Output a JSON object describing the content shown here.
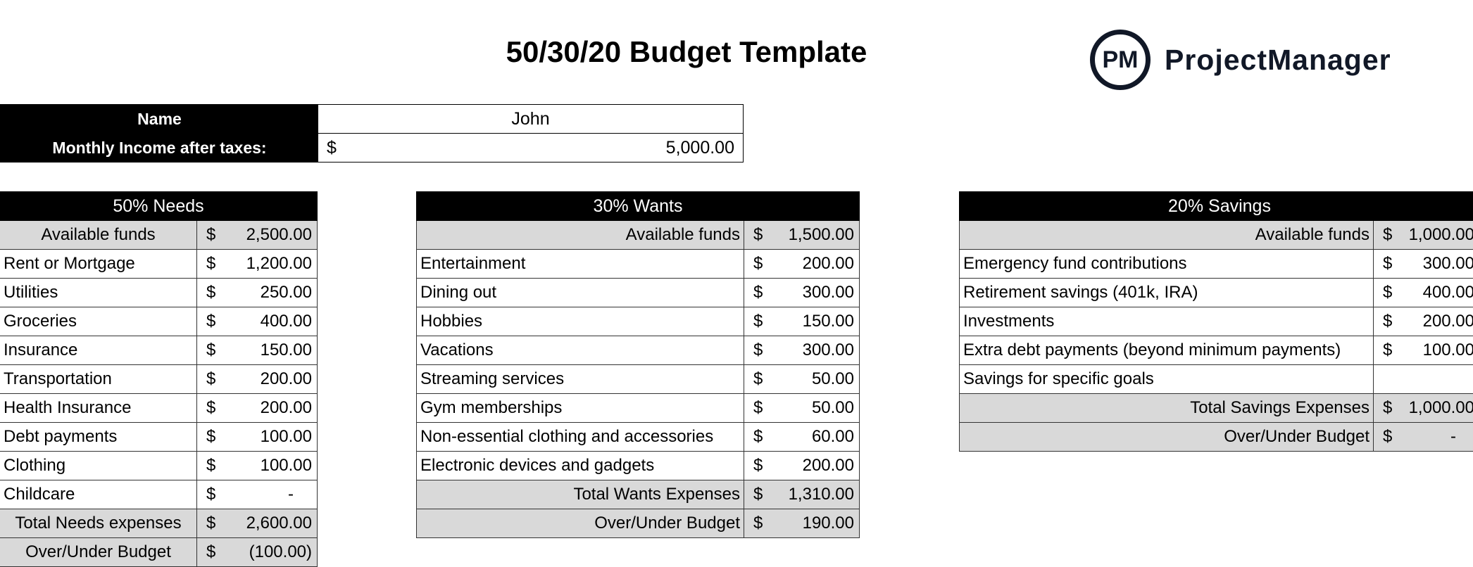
{
  "title": "50/30/20 Budget Template",
  "logo": {
    "mark": "PM",
    "text": "ProjectManager",
    "color": "#111827"
  },
  "info": {
    "name_label": "Name",
    "name_value": "John",
    "income_label": "Monthly Income after taxes:",
    "income_currency": "$",
    "income_value": "5,000.00"
  },
  "needs": {
    "header": "50% Needs",
    "rows": [
      {
        "label": "Available funds",
        "cur": "$",
        "value": "2,500.00",
        "type": "gray"
      },
      {
        "label": "Rent or Mortgage",
        "cur": "$",
        "value": "1,200.00"
      },
      {
        "label": "Utilities",
        "cur": "$",
        "value": "250.00"
      },
      {
        "label": "Groceries",
        "cur": "$",
        "value": "400.00"
      },
      {
        "label": "Insurance",
        "cur": "$",
        "value": "150.00"
      },
      {
        "label": "Transportation",
        "cur": "$",
        "value": "200.00"
      },
      {
        "label": "Health Insurance",
        "cur": "$",
        "value": "200.00"
      },
      {
        "label": "Debt payments",
        "cur": "$",
        "value": "100.00"
      },
      {
        "label": "Clothing",
        "cur": "$",
        "value": "100.00"
      },
      {
        "label": "Childcare",
        "cur": "$",
        "value": "-"
      },
      {
        "label": "Total Needs expenses",
        "cur": "$",
        "value": "2,600.00",
        "type": "gray"
      },
      {
        "label": "Over/Under Budget",
        "cur": "$",
        "value": "(100.00)",
        "type": "gray"
      }
    ]
  },
  "wants": {
    "header": "30% Wants",
    "rows": [
      {
        "label": "Available funds",
        "cur": "$",
        "value": "1,500.00",
        "type": "gray"
      },
      {
        "label": "Entertainment",
        "cur": "$",
        "value": "200.00"
      },
      {
        "label": "Dining out",
        "cur": "$",
        "value": "300.00"
      },
      {
        "label": "Hobbies",
        "cur": "$",
        "value": "150.00"
      },
      {
        "label": "Vacations",
        "cur": "$",
        "value": "300.00"
      },
      {
        "label": "Streaming services",
        "cur": "$",
        "value": "50.00"
      },
      {
        "label": "Gym memberships",
        "cur": "$",
        "value": "50.00"
      },
      {
        "label": "Non-essential clothing and accessories",
        "cur": "$",
        "value": "60.00"
      },
      {
        "label": "Electronic devices and gadgets",
        "cur": "$",
        "value": "200.00"
      },
      {
        "label": "Total Wants Expenses",
        "cur": "$",
        "value": "1,310.00",
        "type": "gray"
      },
      {
        "label": "Over/Under Budget",
        "cur": "$",
        "value": "190.00",
        "type": "gray"
      }
    ]
  },
  "savings": {
    "header": "20% Savings",
    "rows": [
      {
        "label": "Available funds",
        "cur": "$",
        "value": "1,000.00",
        "type": "gray"
      },
      {
        "label": "Emergency fund contributions",
        "cur": "$",
        "value": "300.00"
      },
      {
        "label": "Retirement savings (401k, IRA)",
        "cur": "$",
        "value": "400.00"
      },
      {
        "label": "Investments",
        "cur": "$",
        "value": "200.00"
      },
      {
        "label": "Extra debt payments (beyond minimum payments)",
        "cur": "$",
        "value": "100.00"
      },
      {
        "label": "Savings for specific goals",
        "cur": "",
        "value": ""
      },
      {
        "label": "Total Savings Expenses",
        "cur": "$",
        "value": "1,000.00",
        "type": "gray"
      },
      {
        "label": "Over/Under Budget",
        "cur": "$",
        "value": "-",
        "type": "gray"
      }
    ]
  }
}
